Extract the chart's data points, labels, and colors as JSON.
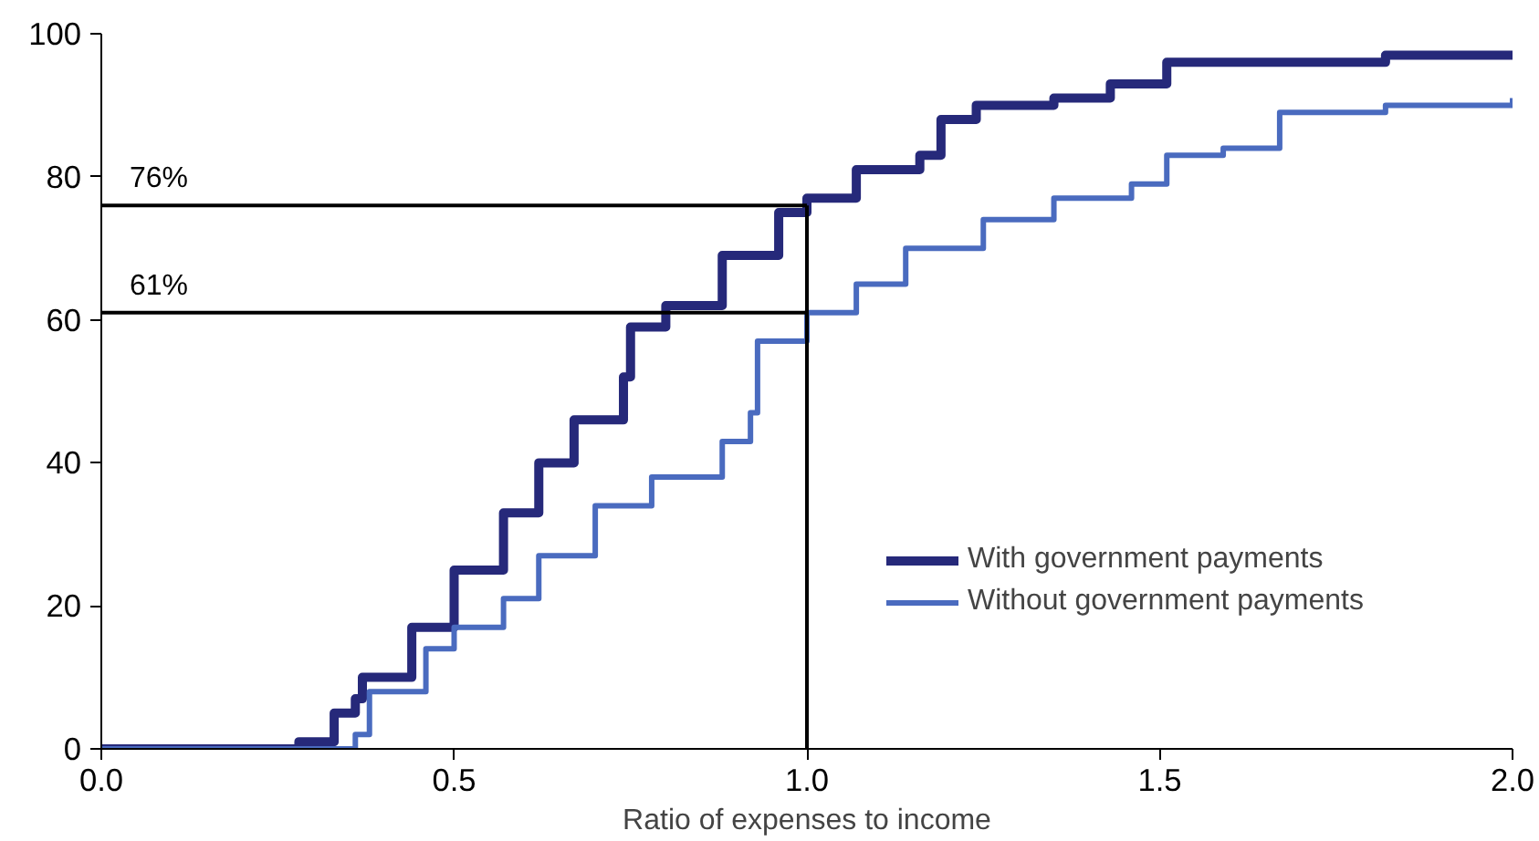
{
  "chart_data": {
    "type": "step",
    "xlabel": "Ratio of expenses to income",
    "xlim": [
      0,
      2
    ],
    "ylim": [
      0,
      100
    ],
    "xticks": [
      {
        "value": 0,
        "label": "0.0"
      },
      {
        "value": 0.5,
        "label": "0.5"
      },
      {
        "value": 1,
        "label": "1.0"
      },
      {
        "value": 1.5,
        "label": "1.5"
      },
      {
        "value": 2,
        "label": "2.0"
      }
    ],
    "yticks": [
      0,
      20,
      40,
      60,
      80,
      100
    ],
    "grid": false,
    "legend": "right",
    "marker": "none",
    "line_style": "solid",
    "series": [
      {
        "name": "With government payments",
        "color": "#26297a",
        "x": [
          0,
          0.2,
          0.28,
          0.33,
          0.36,
          0.37,
          0.44,
          0.5,
          0.57,
          0.62,
          0.67,
          0.74,
          0.75,
          0.8,
          0.88,
          0.96,
          1.0,
          1.07,
          1.16,
          1.19,
          1.24,
          1.35,
          1.43,
          1.51,
          1.67,
          1.82,
          2.0
        ],
        "values": [
          0,
          0,
          1,
          5,
          7,
          10,
          17,
          25,
          33,
          40,
          46,
          52,
          59,
          62,
          69,
          75,
          77,
          81,
          83,
          88,
          90,
          91,
          93,
          96,
          96,
          97,
          97
        ]
      },
      {
        "name": "Without government payments",
        "color": "#4a6bbf",
        "x": [
          0,
          0.3,
          0.36,
          0.38,
          0.46,
          0.5,
          0.57,
          0.62,
          0.7,
          0.78,
          0.88,
          0.92,
          0.93,
          1.0,
          1.07,
          1.14,
          1.25,
          1.35,
          1.46,
          1.51,
          1.59,
          1.67,
          1.82,
          2.0
        ],
        "values": [
          0,
          0,
          2,
          8,
          14,
          17,
          21,
          27,
          34,
          38,
          43,
          47,
          57,
          61,
          65,
          70,
          74,
          77,
          79,
          83,
          84,
          89,
          90,
          91
        ]
      }
    ],
    "ref_lines": [
      {
        "axis": "y",
        "value": 76,
        "label": "76%",
        "color": "#000000"
      },
      {
        "axis": "y",
        "value": 61,
        "label": "61%",
        "color": "#000000"
      },
      {
        "axis": "x",
        "value": 1,
        "color": "#000000"
      }
    ]
  }
}
